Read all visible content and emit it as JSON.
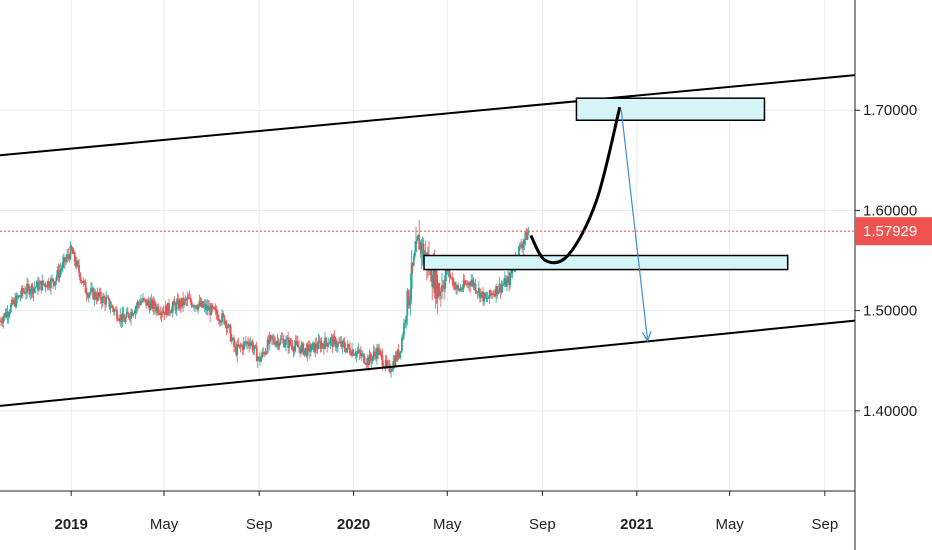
{
  "chart_data": {
    "type": "candlestick",
    "instrument_note": "",
    "y_axis": {
      "range": [
        1.32,
        1.81
      ],
      "ticks": [
        {
          "value": 1.4,
          "label": "1.40000"
        },
        {
          "value": 1.5,
          "label": "1.50000"
        },
        {
          "value": 1.6,
          "label": "1.60000"
        },
        {
          "value": 1.7,
          "label": "1.70000"
        }
      ]
    },
    "x_axis": {
      "range": [
        "2018-10-01",
        "2021-10-10"
      ],
      "ticks": [
        {
          "date": "2019-01-01",
          "label": "2019",
          "bold": true
        },
        {
          "date": "2019-05-01",
          "label": "May",
          "bold": false
        },
        {
          "date": "2019-09-01",
          "label": "Sep",
          "bold": false
        },
        {
          "date": "2020-01-01",
          "label": "2020",
          "bold": true
        },
        {
          "date": "2020-05-01",
          "label": "May",
          "bold": false
        },
        {
          "date": "2020-09-01",
          "label": "Sep",
          "bold": false
        },
        {
          "date": "2021-01-01",
          "label": "2021",
          "bold": true
        },
        {
          "date": "2021-05-01",
          "label": "May",
          "bold": false
        },
        {
          "date": "2021-09-01",
          "label": "Sep",
          "bold": false
        }
      ]
    },
    "grid": true,
    "current_price": {
      "value": 1.57929,
      "label": "1.57929",
      "color": "#ef5350"
    },
    "candle_colors": {
      "up": "#26a69a",
      "down": "#ef5350"
    },
    "price_path": [
      [
        "2018-10-01",
        1.49
      ],
      [
        "2018-11-01",
        1.52
      ],
      [
        "2018-12-10",
        1.53
      ],
      [
        "2019-01-01",
        1.56
      ],
      [
        "2019-01-20",
        1.52
      ],
      [
        "2019-02-15",
        1.51
      ],
      [
        "2019-03-10",
        1.49
      ],
      [
        "2019-04-01",
        1.51
      ],
      [
        "2019-05-01",
        1.5
      ],
      [
        "2019-06-01",
        1.51
      ],
      [
        "2019-07-01",
        1.5
      ],
      [
        "2019-07-20",
        1.49
      ],
      [
        "2019-08-01",
        1.46
      ],
      [
        "2019-08-20",
        1.47
      ],
      [
        "2019-09-01",
        1.45
      ],
      [
        "2019-09-15",
        1.47
      ],
      [
        "2019-10-01",
        1.47
      ],
      [
        "2019-11-01",
        1.46
      ],
      [
        "2019-12-01",
        1.47
      ],
      [
        "2020-01-01",
        1.46
      ],
      [
        "2020-01-20",
        1.45
      ],
      [
        "2020-02-01",
        1.46
      ],
      [
        "2020-02-15",
        1.44
      ],
      [
        "2020-03-01",
        1.46
      ],
      [
        "2020-03-15",
        1.53
      ],
      [
        "2020-03-25",
        1.57
      ],
      [
        "2020-04-05",
        1.55
      ],
      [
        "2020-04-20",
        1.52
      ],
      [
        "2020-05-01",
        1.54
      ],
      [
        "2020-05-15",
        1.52
      ],
      [
        "2020-06-01",
        1.53
      ],
      [
        "2020-06-20",
        1.51
      ],
      [
        "2020-07-01",
        1.52
      ],
      [
        "2020-07-20",
        1.53
      ],
      [
        "2020-08-01",
        1.56
      ],
      [
        "2020-08-15",
        1.58
      ]
    ],
    "channel_lines": [
      {
        "from": [
          "2018-10-01",
          1.655
        ],
        "to": [
          "2021-10-10",
          1.735
        ],
        "color": "#000000"
      },
      {
        "from": [
          "2018-10-01",
          1.405
        ],
        "to": [
          "2021-10-10",
          1.49
        ],
        "color": "#000000"
      }
    ],
    "zones": [
      {
        "from": [
          "2020-04-01",
          1.555
        ],
        "to": [
          "2021-07-15",
          1.541
        ],
        "fill": "#d6f5f8",
        "stroke": "#000000"
      },
      {
        "from": [
          "2020-10-15",
          1.712
        ],
        "to": [
          "2021-06-15",
          1.69
        ],
        "fill": "#d6f5f8",
        "stroke": "#000000"
      }
    ],
    "projection_curve": {
      "color": "#000000",
      "points": [
        [
          "2020-08-17",
          1.575
        ],
        [
          "2020-09-05",
          1.55
        ],
        [
          "2020-10-05",
          1.556
        ],
        [
          "2020-11-10",
          1.61
        ],
        [
          "2020-12-10",
          1.703
        ]
      ]
    },
    "projection_arrow": {
      "color": "#3d8fd6",
      "from": [
        "2020-12-12",
        1.7
      ],
      "to": [
        "2021-01-15",
        1.47
      ]
    }
  }
}
